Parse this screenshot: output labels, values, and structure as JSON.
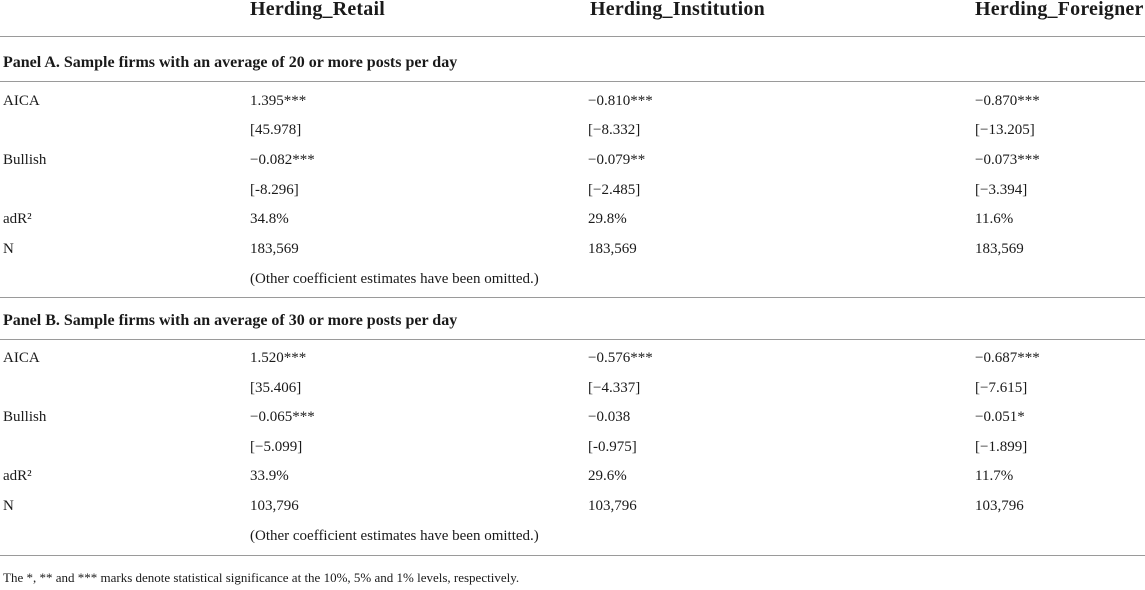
{
  "header": {
    "col1": "Herding_Retail",
    "col2": "Herding_Institution",
    "col3": "Herding_Foreigner"
  },
  "panels": [
    {
      "title": "Panel A. Sample firms with an average of 20 or more posts per day",
      "rows": [
        {
          "label": "AICA",
          "c1": "1.395***",
          "c2": "−0.810***",
          "c3": "−0.870***"
        },
        {
          "label": "",
          "c1": "[45.978]",
          "c2": "[−8.332]",
          "c3": "[−13.205]"
        },
        {
          "label": "Bullish",
          "c1": "−0.082***",
          "c2": "−0.079**",
          "c3": "−0.073***"
        },
        {
          "label": "",
          "c1": "[-8.296]",
          "c2": "[−2.485]",
          "c3": "[−3.394]"
        },
        {
          "label": "adR²",
          "c1": "34.8%",
          "c2": "29.8%",
          "c3": "11.6%"
        },
        {
          "label": "N",
          "c1": "183,569",
          "c2": "183,569",
          "c3": "183,569"
        },
        {
          "label": "",
          "c1": "(Other coefficient estimates have been omitted.)",
          "c2": "",
          "c3": ""
        }
      ]
    },
    {
      "title": "Panel B. Sample firms with an average of 30 or more posts per day",
      "rows": [
        {
          "label": "AICA",
          "c1": "1.520***",
          "c2": "−0.576***",
          "c3": "−0.687***"
        },
        {
          "label": "",
          "c1": "[35.406]",
          "c2": "[−4.337]",
          "c3": "[−7.615]"
        },
        {
          "label": "Bullish",
          "c1": "−0.065***",
          "c2": "−0.038",
          "c3": "−0.051*"
        },
        {
          "label": "",
          "c1": "[−5.099]",
          "c2": "[-0.975]",
          "c3": "[−1.899]"
        },
        {
          "label": "adR²",
          "c1": "33.9%",
          "c2": "29.6%",
          "c3": "11.7%"
        },
        {
          "label": "N",
          "c1": "103,796",
          "c2": "103,796",
          "c3": "103,796"
        },
        {
          "label": "",
          "c1": "(Other coefficient estimates have been omitted.)",
          "c2": "",
          "c3": ""
        }
      ]
    }
  ],
  "footnote": "The *, ** and *** marks denote statistical significance at the 10%, 5% and 1% levels, respectively."
}
